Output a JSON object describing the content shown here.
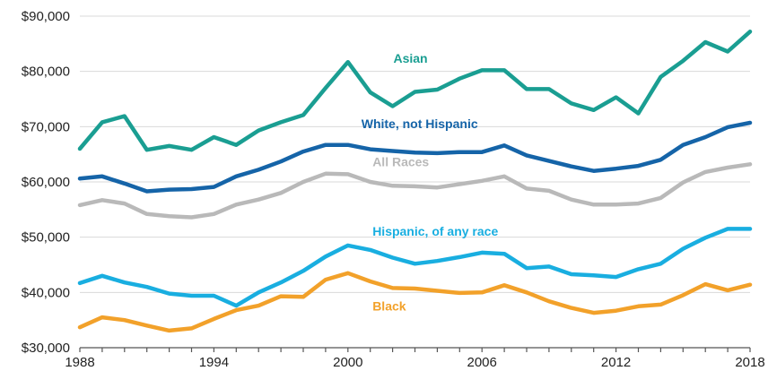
{
  "chart_data": {
    "type": "line",
    "title": "",
    "xlabel": "",
    "ylabel": "",
    "xlim": [
      1988,
      2018
    ],
    "ylim": [
      30000,
      90000
    ],
    "x_ticks": [
      "1988",
      "1994",
      "2000",
      "2006",
      "2012",
      "2018"
    ],
    "y_ticks": [
      "$30,000",
      "$40,000",
      "$50,000",
      "$60,000",
      "$70,000",
      "$80,000",
      "$90,000"
    ],
    "grid": true,
    "x": [
      1988,
      1989,
      1990,
      1991,
      1992,
      1993,
      1994,
      1995,
      1996,
      1997,
      1998,
      1999,
      2000,
      2001,
      2002,
      2003,
      2004,
      2005,
      2006,
      2007,
      2008,
      2009,
      2010,
      2011,
      2012,
      2013,
      2014,
      2015,
      2016,
      2017,
      2018
    ],
    "series": [
      {
        "name": "Asian",
        "color": "#1a9e92",
        "values": [
          66000,
          70800,
          71900,
          65800,
          66500,
          65800,
          68100,
          66700,
          69300,
          70800,
          72100,
          77000,
          81700,
          76200,
          73700,
          76300,
          76700,
          78700,
          80200,
          80200,
          76800,
          76800,
          74200,
          73000,
          75300,
          72400,
          79000,
          81900,
          85300,
          83600,
          87200
        ]
      },
      {
        "name": "White, not Hispanic",
        "color": "#1564a8",
        "values": [
          60600,
          61000,
          59700,
          58300,
          58600,
          58700,
          59100,
          61000,
          62200,
          63700,
          65500,
          66700,
          66700,
          65900,
          65600,
          65300,
          65200,
          65400,
          65400,
          66600,
          64800,
          63800,
          62800,
          62000,
          62400,
          62900,
          64000,
          66700,
          68100,
          69900,
          70700
        ]
      },
      {
        "name": "All Races",
        "color": "#b9b9b9",
        "values": [
          55800,
          56700,
          56100,
          54200,
          53800,
          53600,
          54200,
          55900,
          56800,
          58000,
          60000,
          61500,
          61400,
          60000,
          59300,
          59200,
          59000,
          59600,
          60200,
          61000,
          58800,
          58400,
          56800,
          55900,
          55900,
          56100,
          57100,
          59900,
          61800,
          62600,
          63200
        ]
      },
      {
        "name": "Hispanic, of any race",
        "color": "#19aee0",
        "values": [
          41700,
          43000,
          41800,
          41000,
          39800,
          39400,
          39400,
          37600,
          40000,
          41800,
          43900,
          46500,
          48500,
          47700,
          46300,
          45200,
          45700,
          46400,
          47200,
          47000,
          44400,
          44700,
          43300,
          43100,
          42800,
          44200,
          45200,
          47900,
          49900,
          51500,
          51500
        ]
      },
      {
        "name": "Black",
        "color": "#f2a12a",
        "values": [
          33700,
          35500,
          35000,
          34000,
          33100,
          33500,
          35200,
          36800,
          37600,
          39300,
          39200,
          42300,
          43500,
          42000,
          40800,
          40700,
          40300,
          39900,
          40000,
          41300,
          40000,
          38400,
          37200,
          36300,
          36700,
          37500,
          37800,
          39500,
          41500,
          40400,
          41400
        ]
      }
    ],
    "label_positions": [
      {
        "year": 2002.8,
        "value": 81600,
        "anchor": "middle"
      },
      {
        "year": 2000.6,
        "value": 69700,
        "anchor": "start"
      },
      {
        "year": 2001.1,
        "value": 62800,
        "anchor": "start"
      },
      {
        "year": 2001.1,
        "value": 50300,
        "anchor": "start"
      },
      {
        "year": 2001.1,
        "value": 36700,
        "anchor": "start"
      }
    ]
  }
}
